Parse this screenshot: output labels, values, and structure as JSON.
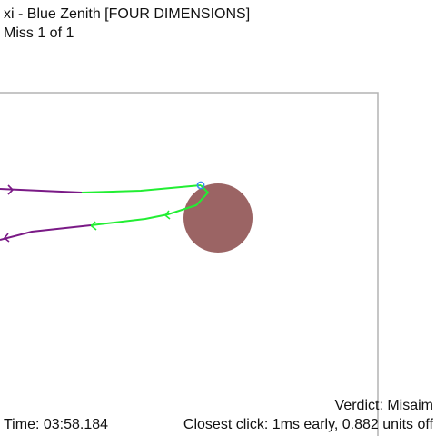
{
  "header": {
    "title": "xi - Blue Zenith [FOUR DIMENSIONS]",
    "miss_counter": "Miss 1 of 1"
  },
  "footer": {
    "verdict": "Verdict: Misaim",
    "time": "Time: 03:58.184",
    "closest_click": "Closest click: 1ms early, 0.882 units off"
  },
  "colors": {
    "background": "#ffffff",
    "border": "#b4b4b4",
    "hit_circle": "#9b6464",
    "cursor_path_before": "#7a1a86",
    "cursor_path_after": "#22ee33",
    "click_marker": "#3a8ef0"
  },
  "icons": {
    "click_marker": "click-marker-icon",
    "direction_arrow": "arrow-icon"
  }
}
